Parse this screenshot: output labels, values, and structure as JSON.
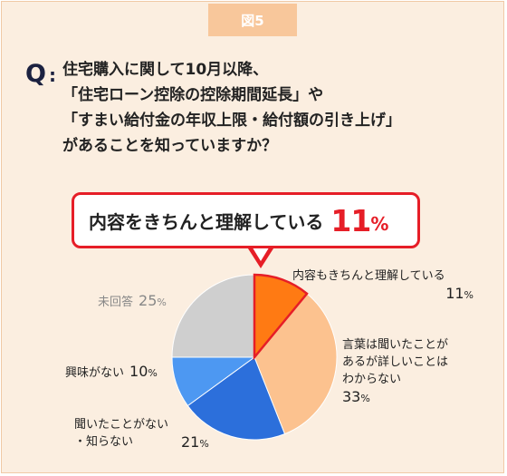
{
  "figure_tag": "図5",
  "question": {
    "mark": "Q",
    "colon": ":",
    "lines": [
      "住宅購入に関して10月以降、",
      "「住宅ローン控除の控除期間延長」や",
      "「すまい給付金の年収上限・給付額の引き上げ」",
      "があることを知っていますか？"
    ]
  },
  "callout": {
    "text": "内容をきちんと理解している",
    "value": "11",
    "unit": "%"
  },
  "colors": {
    "accent": "#e61e27",
    "slices": [
      "#ff7a13",
      "#fcc28f",
      "#2c6fdb",
      "#4d98f2",
      "#cfcfcf"
    ],
    "tag_bg": "#f8c79b",
    "background": "#fbeee0"
  },
  "chart_data": {
    "type": "pie",
    "slices": [
      {
        "label_lines": [
          "内容もきちんと理解している"
        ],
        "value": 11,
        "display": "11"
      },
      {
        "label_lines": [
          "言葉は聞いたことが",
          "あるが詳しいことは",
          "わからない"
        ],
        "value": 33,
        "display": "33"
      },
      {
        "label_lines": [
          "聞いたことがない",
          "・知らない"
        ],
        "value": 21,
        "display": "21"
      },
      {
        "label_lines": [
          "興味がない"
        ],
        "value": 10,
        "display": "10"
      },
      {
        "label_lines": [
          "未回答"
        ],
        "value": 25,
        "display": "25"
      }
    ],
    "unit": "%",
    "start": "12 o'clock",
    "direction": "clockwise"
  }
}
